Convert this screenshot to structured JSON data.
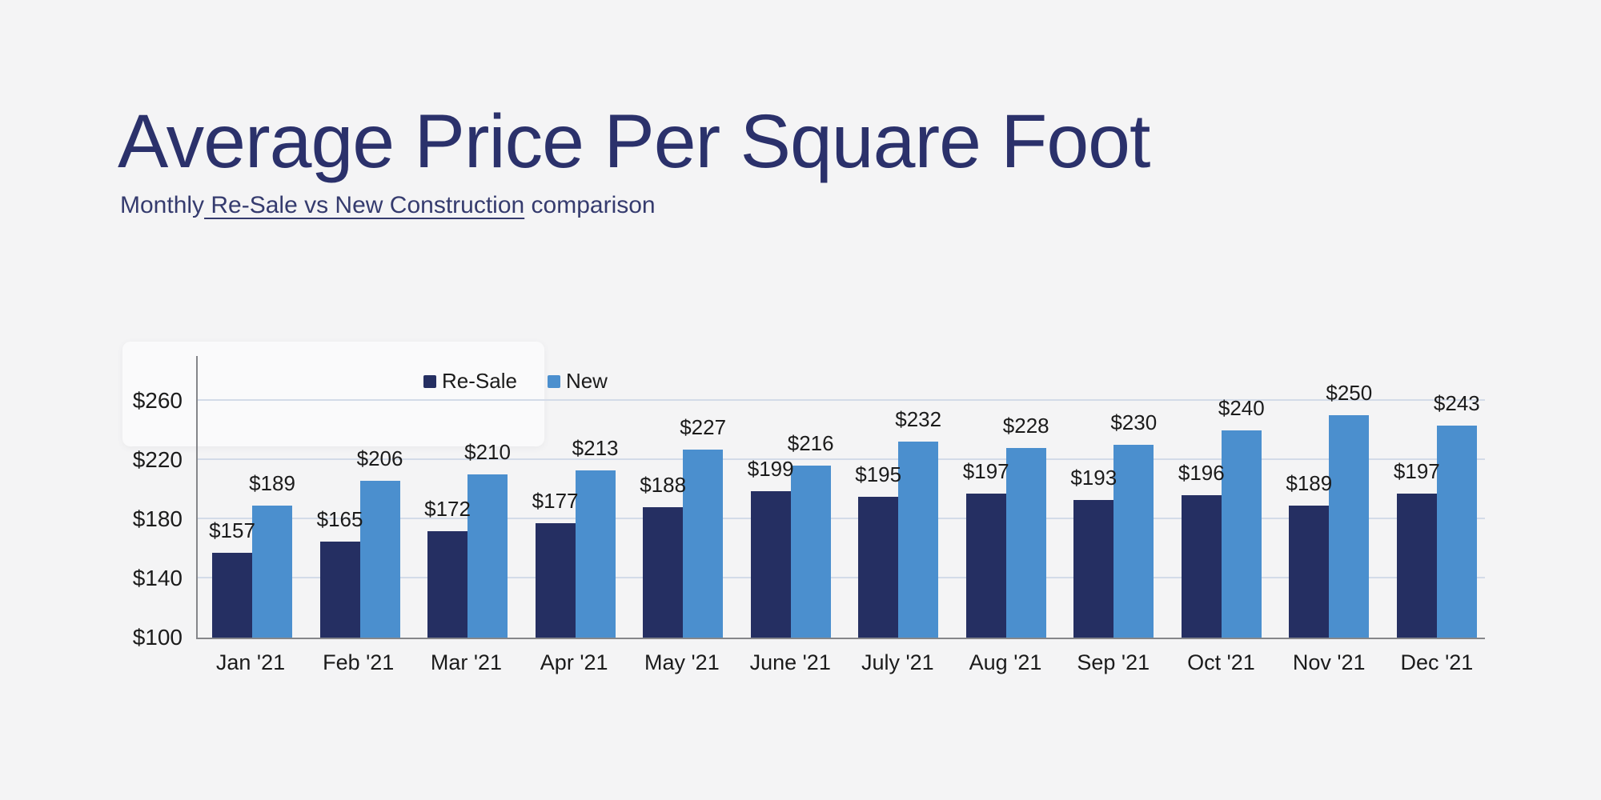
{
  "page": {
    "background_color": "#f4f4f5"
  },
  "header": {
    "title": "Average Price Per Square Foot",
    "title_color": "#2b316b",
    "subtitle_prefix": "Monthly",
    "subtitle_link": " Re-Sale vs New Construction",
    "subtitle_suffix": " comparison"
  },
  "chart_data": {
    "type": "bar",
    "title": "Average Price Per Square Foot",
    "subtitle": "Monthly Re-Sale vs New Construction comparison",
    "categories": [
      "Jan '21",
      "Feb '21",
      "Mar '21",
      "Apr '21",
      "May '21",
      "June '21",
      "July '21",
      "Aug '21",
      "Sep '21",
      "Oct '21",
      "Nov '21",
      "Dec '21"
    ],
    "series": [
      {
        "name": "Re-Sale",
        "color": "#252f62",
        "values": [
          157,
          165,
          172,
          177,
          188,
          199,
          195,
          197,
          193,
          196,
          189,
          197
        ]
      },
      {
        "name": "New",
        "color": "#4b8fce",
        "values": [
          189,
          206,
          210,
          213,
          227,
          216,
          232,
          228,
          230,
          240,
          250,
          243
        ]
      }
    ],
    "value_prefix": "$",
    "data_labels_visible": true,
    "y_ticks": [
      {
        "label": "$100",
        "value": 100
      },
      {
        "label": "$140",
        "value": 140
      },
      {
        "label": "$180",
        "value": 180
      },
      {
        "label": "$220",
        "value": 220
      },
      {
        "label": "$260",
        "value": 260
      }
    ],
    "ylim": [
      100,
      290
    ],
    "grid": "horizontal",
    "gridline_color": "#d3dbe8",
    "axis_line_color": "#85868a",
    "legend_position": "top-left",
    "legend_entries": [
      "Re-Sale",
      "New"
    ]
  }
}
